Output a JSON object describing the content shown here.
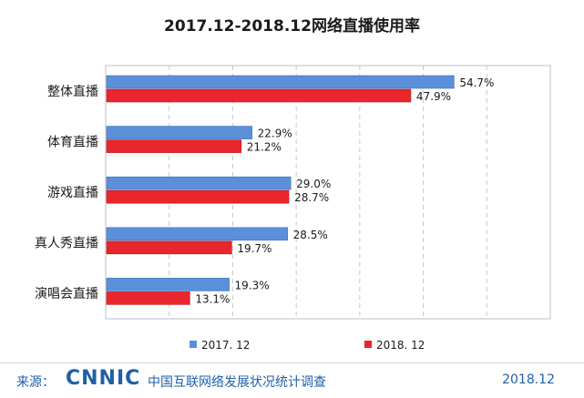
{
  "chart_data": {
    "type": "bar",
    "orientation": "horizontal",
    "title": "2017.12-2018.12网络直播使用率",
    "categories": [
      "整体直播",
      "体育直播",
      "游戏直播",
      "真人秀直播",
      "演唱会直播"
    ],
    "series": [
      {
        "name": "2017. 12",
        "values": [
          54.7,
          22.9,
          29.0,
          28.5,
          19.3
        ],
        "labels": [
          "54.7%",
          "22.9%",
          "29.0%",
          "28.5%",
          "19.3%"
        ],
        "color": "#5b8fd9"
      },
      {
        "name": "2018. 12",
        "values": [
          47.9,
          21.2,
          28.7,
          19.7,
          13.1
        ],
        "labels": [
          "47.9%",
          "21.2%",
          "28.7%",
          "19.7%",
          "13.1%"
        ],
        "color": "#e8262c"
      }
    ],
    "xlim": [
      0,
      70
    ],
    "grid": true,
    "legend": "bottom"
  },
  "footer": {
    "source_label": "来源：",
    "logo_text": "CNNIC",
    "org_name": "中国互联网络发展状况统计调查",
    "date": "2018.12"
  }
}
